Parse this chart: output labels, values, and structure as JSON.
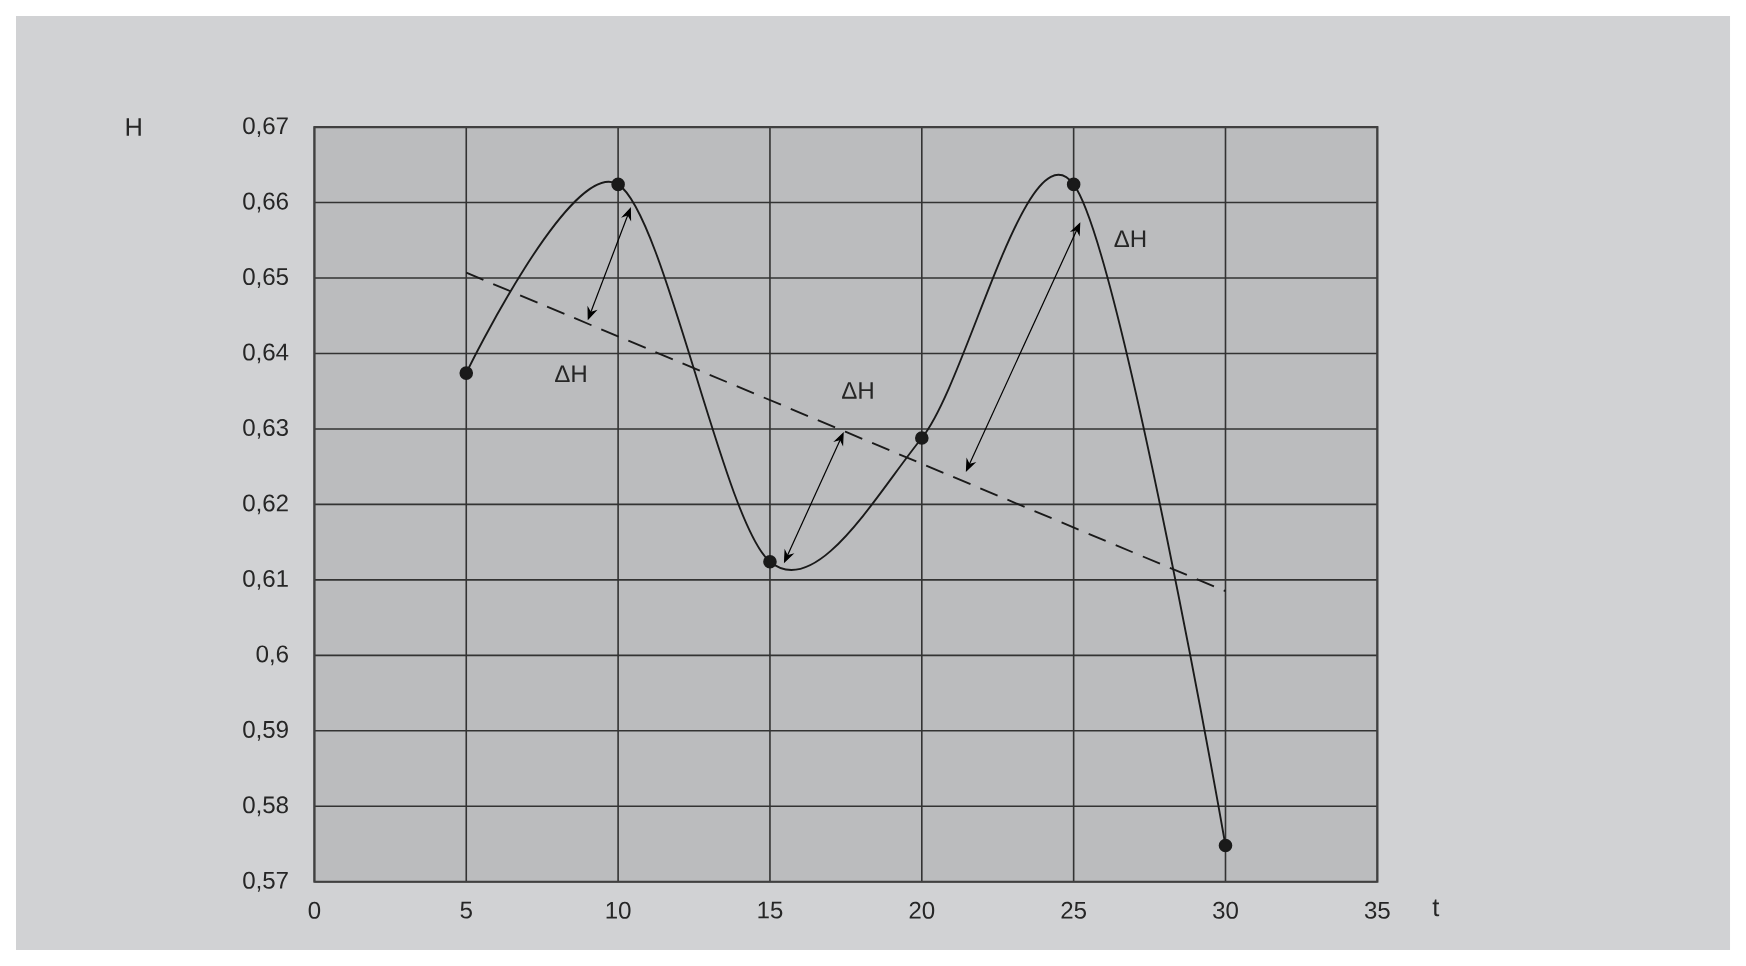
{
  "chart_data": {
    "type": "line",
    "xlabel": "t",
    "ylabel": "H",
    "xlim": [
      0,
      35
    ],
    "ylim": [
      0.57,
      0.67
    ],
    "xticks": [
      0,
      5,
      10,
      15,
      20,
      25,
      30,
      35
    ],
    "yticks": [
      {
        "value": 0.57,
        "label": "0,57"
      },
      {
        "value": 0.58,
        "label": "0,58"
      },
      {
        "value": 0.59,
        "label": "0,59"
      },
      {
        "value": 0.6,
        "label": "0,6"
      },
      {
        "value": 0.61,
        "label": "0,61"
      },
      {
        "value": 0.62,
        "label": "0,62"
      },
      {
        "value": 0.63,
        "label": "0,63"
      },
      {
        "value": 0.64,
        "label": "0,64"
      },
      {
        "value": 0.65,
        "label": "0,65"
      },
      {
        "value": 0.66,
        "label": "0,66"
      },
      {
        "value": 0.67,
        "label": "0,67"
      }
    ],
    "grid": true,
    "series": [
      {
        "color": "#1a1a1a",
        "x": [
          5,
          10,
          15,
          20,
          25,
          30
        ],
        "values": [
          0.6374,
          0.6624,
          0.6124,
          0.6288,
          0.6624,
          0.5748
        ],
        "marker": "circle",
        "line_style": "solid"
      },
      {
        "color": "#1a1a1a",
        "x": [
          5,
          30
        ],
        "values": [
          0.6507,
          0.6085
        ],
        "marker": "none",
        "line_style": "dashed"
      }
    ],
    "annotations": [
      "ΔH",
      "ΔH",
      "ΔH"
    ]
  }
}
